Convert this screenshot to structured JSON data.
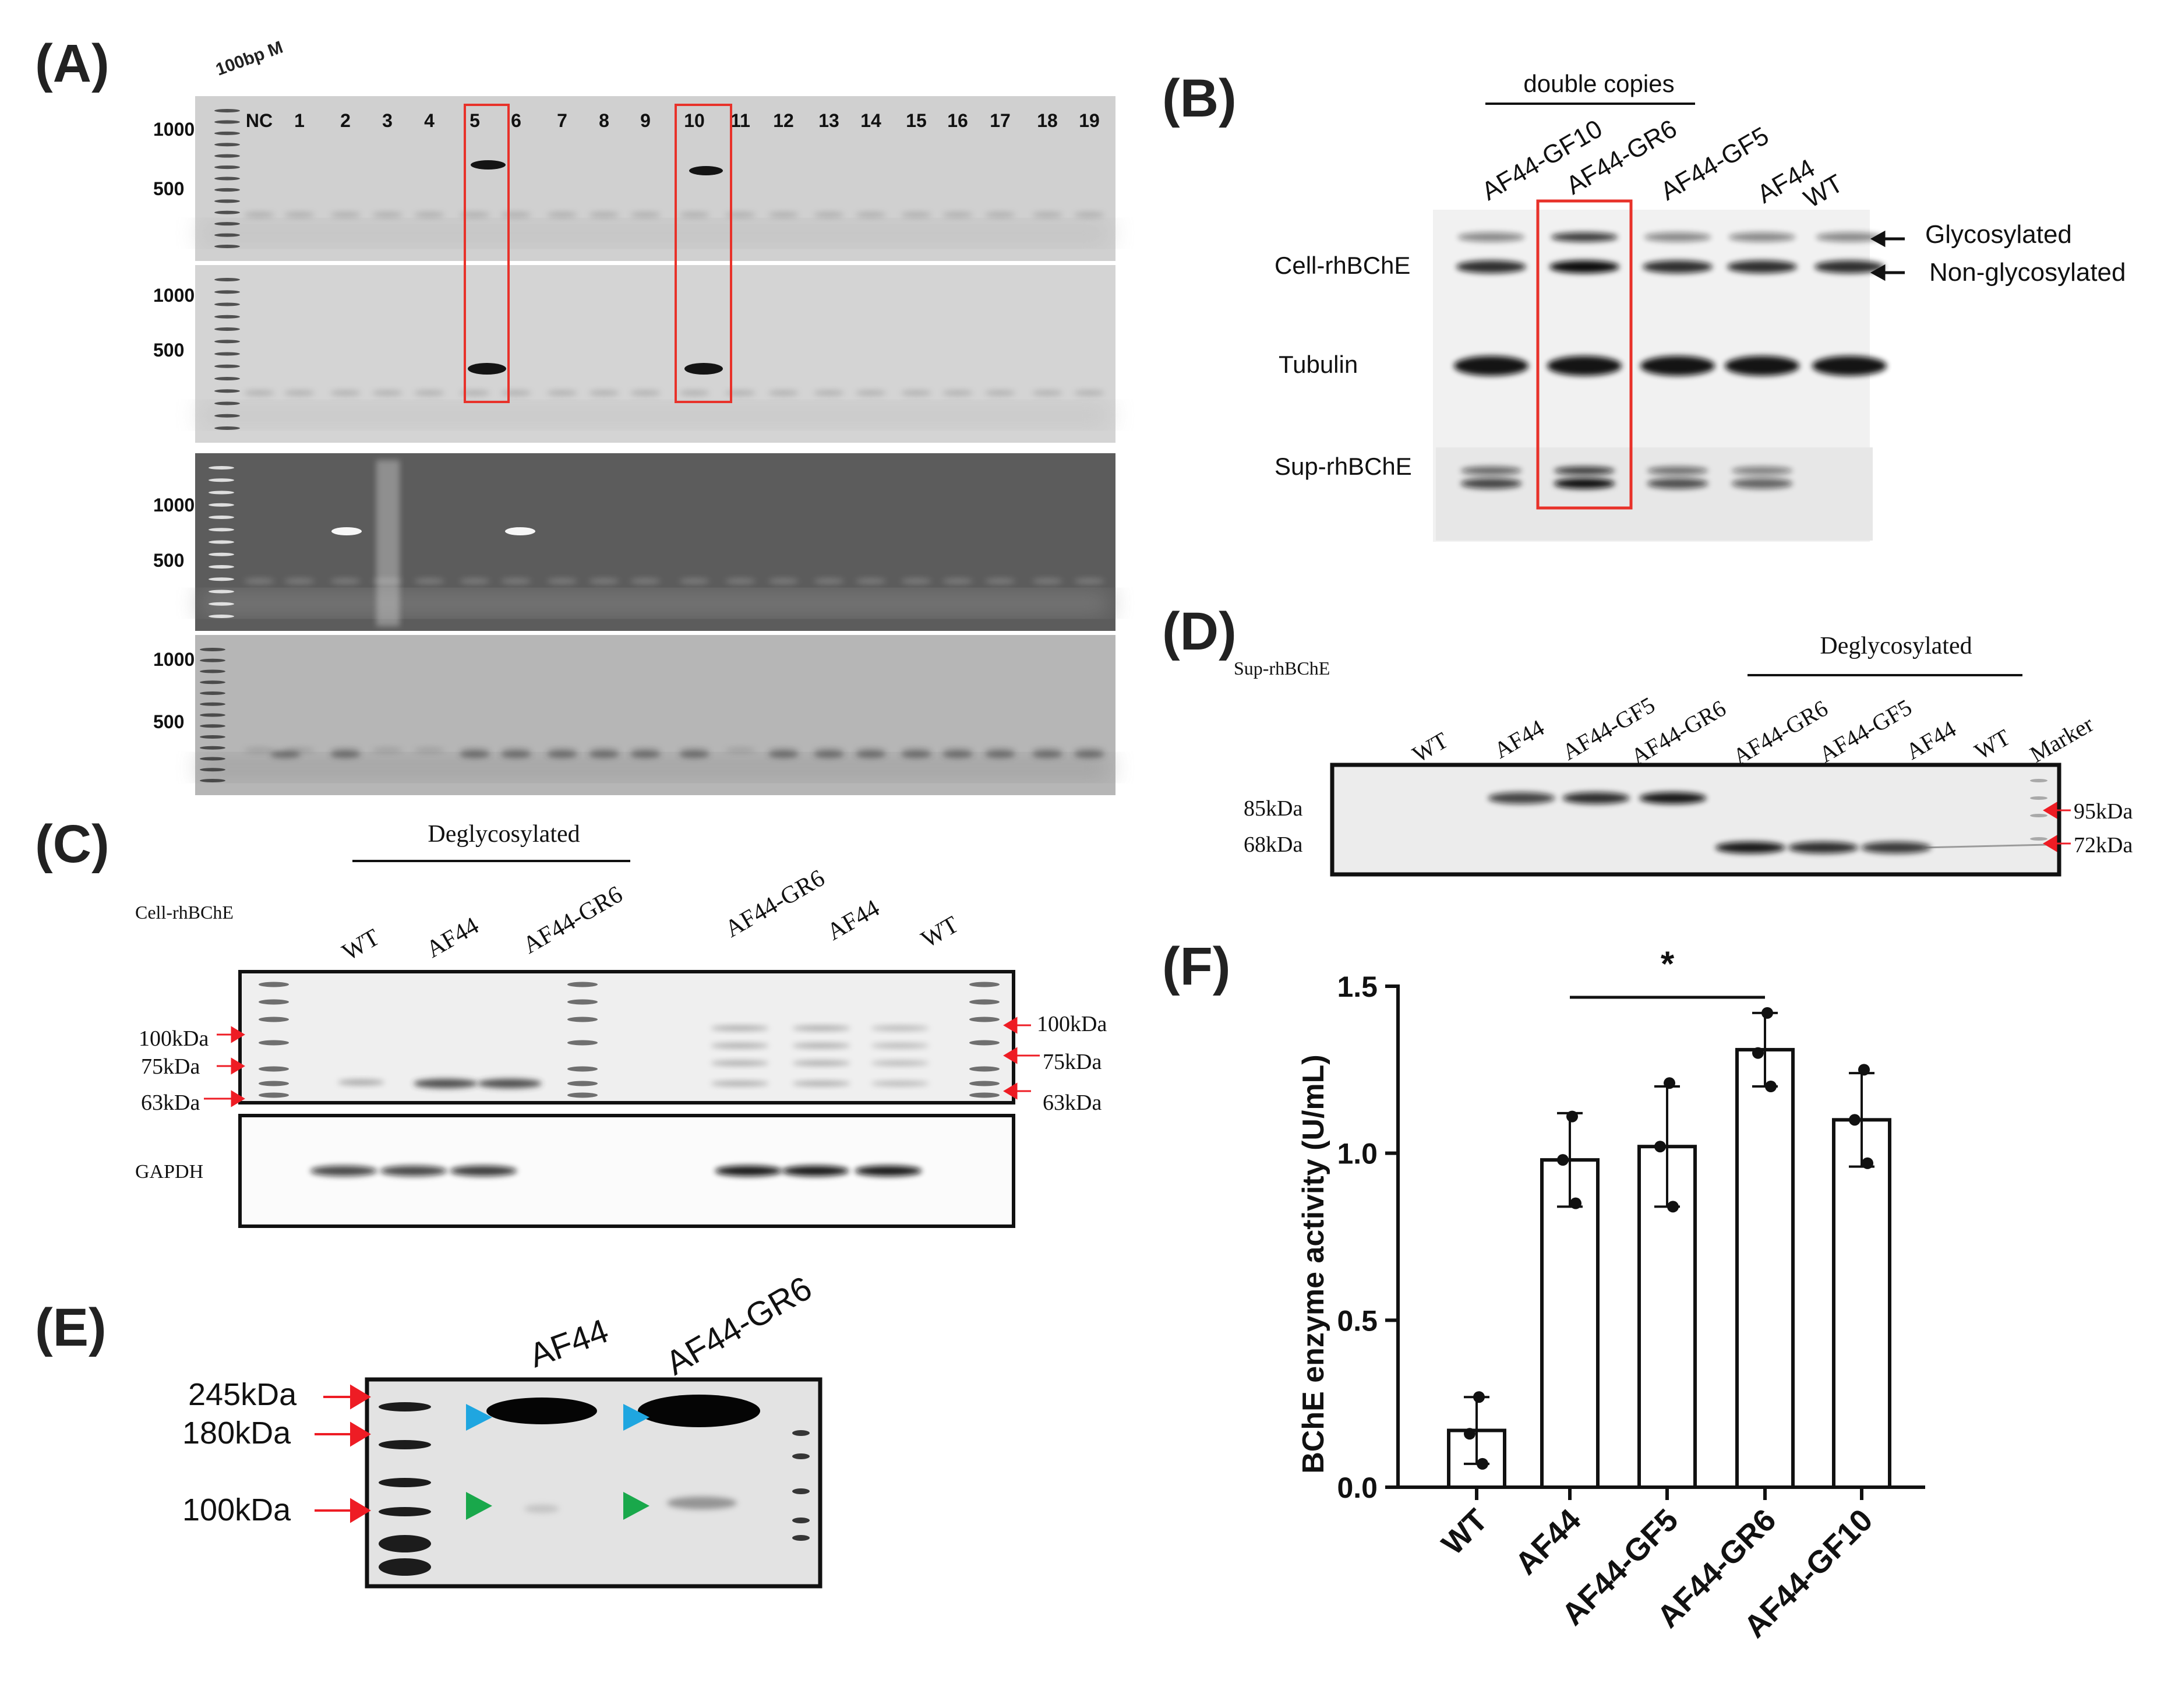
{
  "panels": {
    "A": {
      "label": "(A)",
      "marker_label": "100bp M",
      "size_labels": [
        "1000",
        "500"
      ],
      "lane_labels": [
        "NC",
        "1",
        "2",
        "3",
        "4",
        "5",
        "6",
        "7",
        "8",
        "9",
        "10",
        "11",
        "12",
        "13",
        "14",
        "15",
        "16",
        "17",
        "18",
        "19"
      ],
      "highlighted_lanes": [
        "5",
        "10"
      ]
    },
    "B": {
      "label": "(B)",
      "group_label": "double copies",
      "lanes": [
        "AF44-GF10",
        "AF44-GR6",
        "AF44-GF5",
        "AF44",
        "WT"
      ],
      "rows": [
        "Cell-rhBChE",
        "Tubulin",
        "Sup-rhBChE"
      ],
      "band_annotations": [
        "Glycosylated",
        "Non-glycosylated"
      ]
    },
    "C": {
      "label": "(C)",
      "group_label": "Deglycosylated",
      "row_label": "Cell-rhBChE",
      "lanes_left": [
        "WT",
        "AF44",
        "AF44-GR6"
      ],
      "lanes_right": [
        "AF44-GR6",
        "AF44",
        "WT"
      ],
      "markers_left": [
        "100kDa",
        "75kDa",
        "63kDa"
      ],
      "markers_right": [
        "100kDa",
        "75kDa",
        "63kDa"
      ],
      "loading_control": "GAPDH"
    },
    "D": {
      "label": "(D)",
      "row_label": "Sup-rhBChE",
      "group_label": "Deglycosylated",
      "lanes": [
        "WT",
        "AF44",
        "AF44-GF5",
        "AF44-GR6",
        "AF44-GR6",
        "AF44-GF5",
        "AF44",
        "WT",
        "Marker"
      ],
      "markers_left": [
        "85kDa",
        "68kDa"
      ],
      "markers_right": [
        "95kDa",
        "72kDa"
      ]
    },
    "E": {
      "label": "(E)",
      "lanes": [
        "AF44",
        "AF44-GR6"
      ],
      "markers": [
        "245kDa",
        "180kDa",
        "100kDa"
      ],
      "arrow_colors": {
        "marker": "#ee1c24",
        "upper": "#1fa6e0",
        "lower": "#19a84b"
      }
    },
    "F": {
      "label": "(F)",
      "significance": "*"
    }
  },
  "chart_data": {
    "type": "bar",
    "categories": [
      "WT",
      "AF44",
      "AF44-GF5",
      "AF44-GR6",
      "AF44-GF10"
    ],
    "values": [
      0.17,
      0.98,
      1.02,
      1.31,
      1.1
    ],
    "errors": [
      0.1,
      0.14,
      0.18,
      0.11,
      0.14
    ],
    "points": [
      [
        0.27,
        0.16,
        0.07
      ],
      [
        1.11,
        0.98,
        0.85
      ],
      [
        1.21,
        1.02,
        0.84
      ],
      [
        1.42,
        1.3,
        1.2
      ],
      [
        1.25,
        1.1,
        0.97
      ]
    ],
    "title": "",
    "xlabel": "",
    "ylabel": "BChE enzyme activity (U/mL)",
    "ylim": [
      0,
      1.5
    ],
    "yticks": [
      0.0,
      0.5,
      1.0,
      1.5
    ],
    "ytick_labels": [
      "0.0",
      "0.5",
      "1.0",
      "1.5"
    ],
    "significance": {
      "from": "AF44",
      "to": "AF44-GR6",
      "label": "*"
    },
    "grid": false,
    "legend": "none"
  }
}
